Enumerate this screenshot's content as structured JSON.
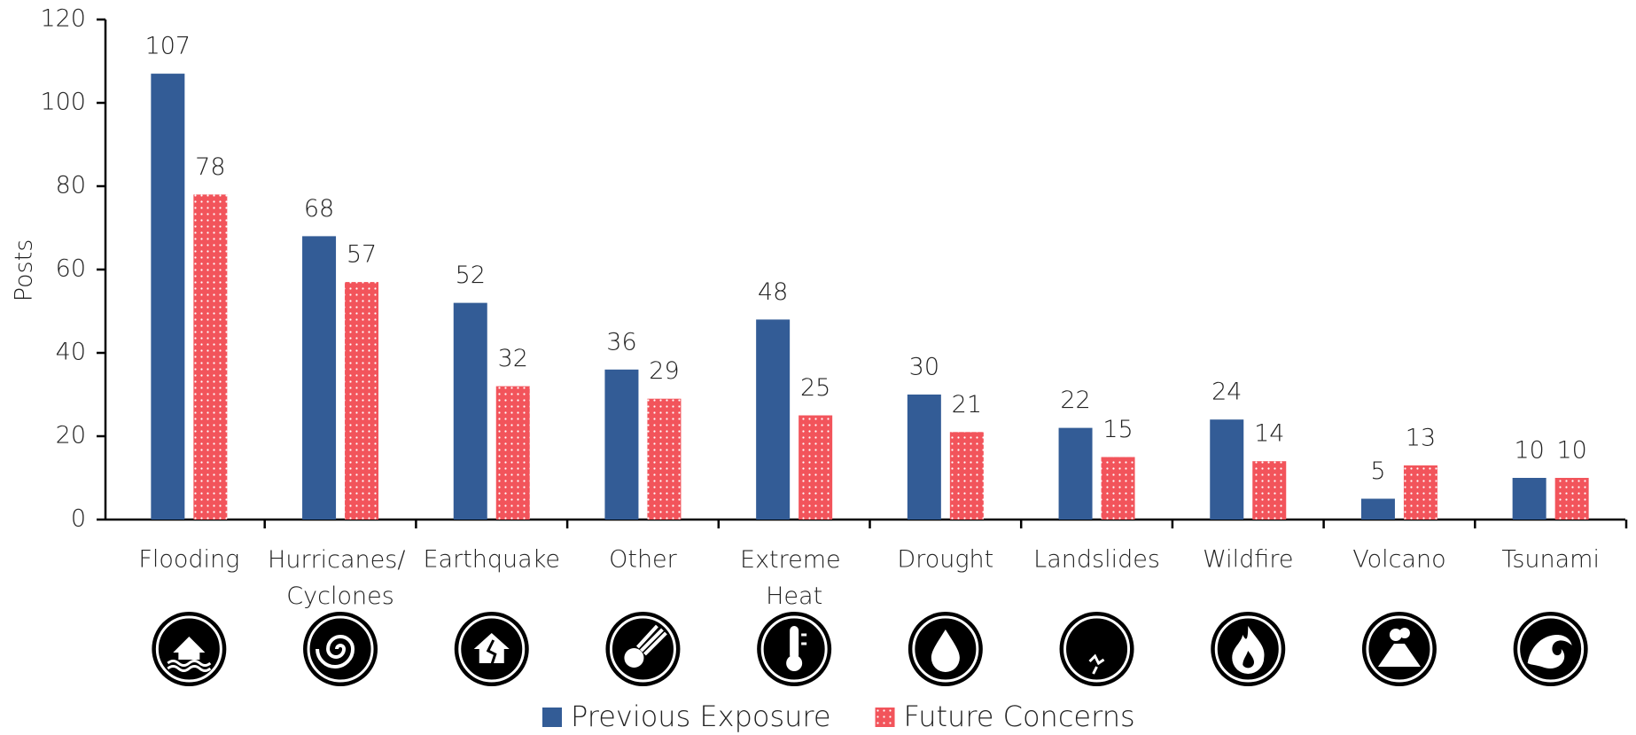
{
  "chart_data": {
    "type": "bar",
    "y_label": "Posts",
    "categories": [
      "Flooding",
      "Hurricanes/ Cyclones",
      "Earthquake",
      "Other",
      "Extreme Heat",
      "Drought",
      "Landslides",
      "Wildfire",
      "Volcano",
      "Tsunami"
    ],
    "series": [
      {
        "name": "Previous Exposure",
        "color": "#335c96",
        "values": [
          107,
          68,
          52,
          36,
          48,
          30,
          22,
          24,
          5,
          10
        ]
      },
      {
        "name": "Future Concerns",
        "color": "#f2545b",
        "pattern": "dots",
        "values": [
          78,
          57,
          32,
          29,
          25,
          21,
          15,
          14,
          13,
          10
        ]
      }
    ],
    "ylim": [
      0,
      120
    ],
    "yticks": [
      0,
      20,
      40,
      60,
      80,
      100,
      120
    ],
    "grid": false
  }
}
